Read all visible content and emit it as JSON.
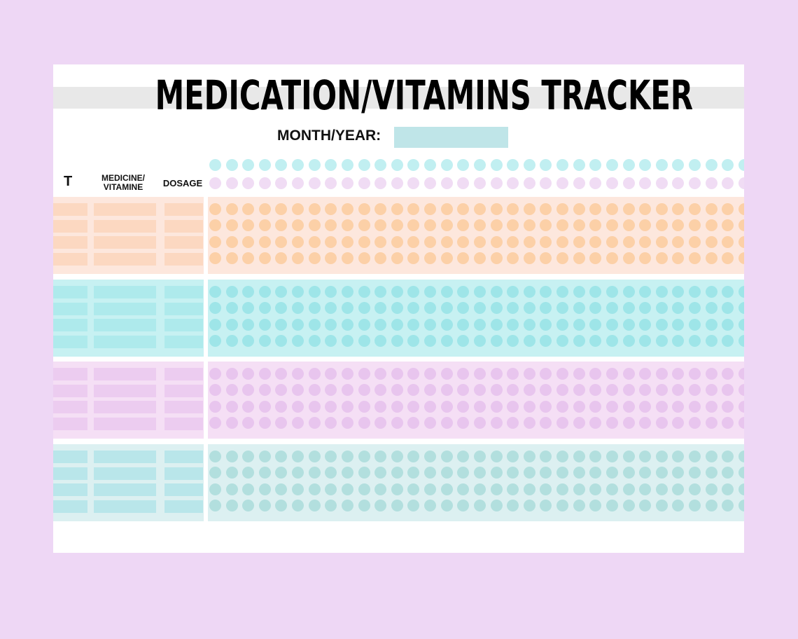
{
  "title": "MEDICATION/VITAMINS TRACKER",
  "month_year_label": "MONTH/YEAR:",
  "month_year_value": "",
  "headers": {
    "t": "T",
    "medicine": "MEDICINE/ VITAMINE",
    "dosage": "DOSAGE"
  },
  "days_in_grid": 33,
  "header_dot_colors": [
    "#c1eff1",
    "#f0dcf4"
  ],
  "sections": [
    {
      "name": "peach",
      "rows": 4,
      "bg": "#fde7dd",
      "cell": "#fcd8c1",
      "dot": "#fcd0a7"
    },
    {
      "name": "aqua",
      "rows": 4,
      "bg": "#c7f1f2",
      "cell": "#aeeaec",
      "dot": "#9ee5e8"
    },
    {
      "name": "lilac",
      "rows": 4,
      "bg": "#f5dff5",
      "cell": "#ecccf0",
      "dot": "#e8c5ee"
    },
    {
      "name": "teal",
      "rows": 4,
      "bg": "#dcf0f1",
      "cell": "#b9e6ea",
      "dot": "#b2dfde"
    }
  ]
}
